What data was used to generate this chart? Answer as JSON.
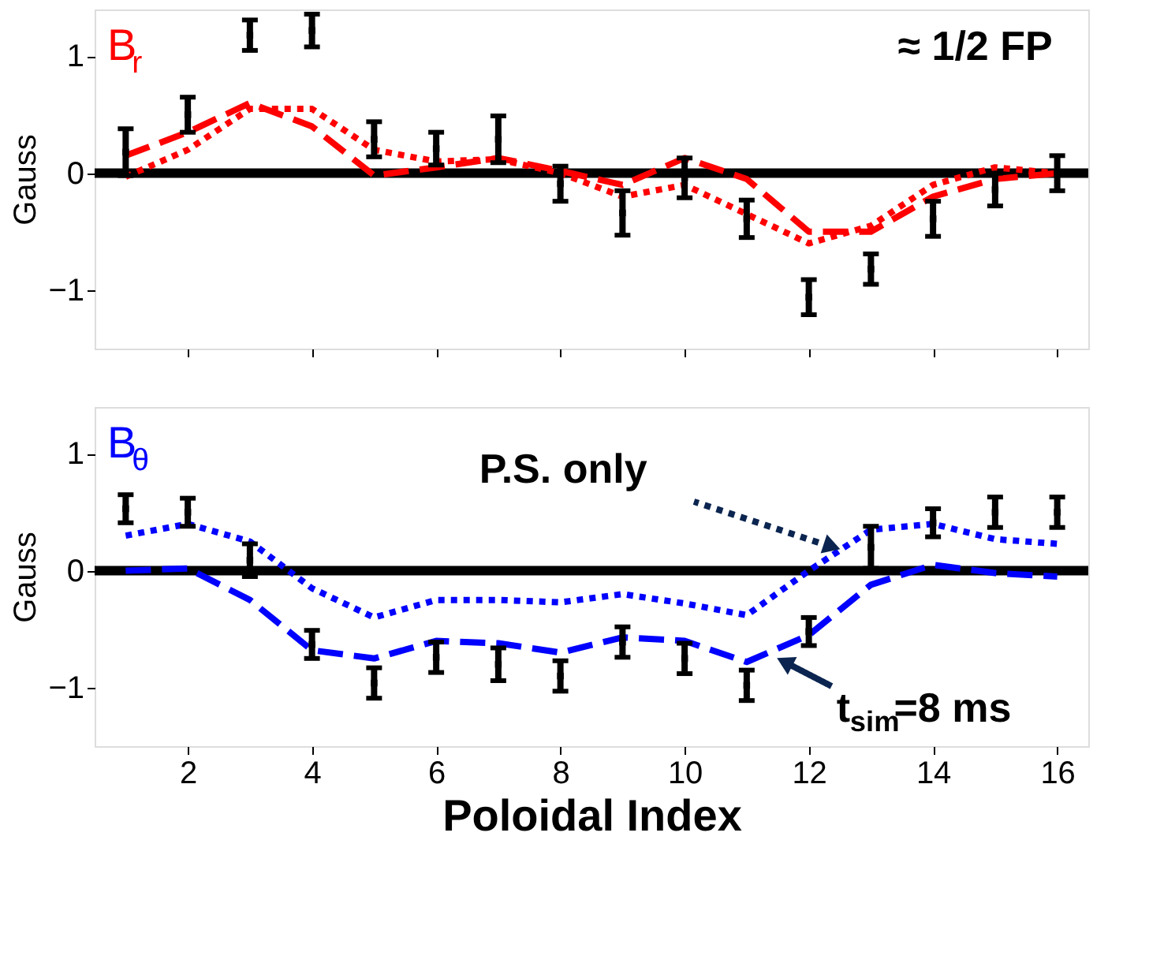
{
  "chart_data": [
    {
      "type": "line",
      "ylabel": "Gauss",
      "xlim": [
        0.5,
        16.5
      ],
      "xticks": [
        2,
        4,
        6,
        8,
        10,
        12,
        14,
        16
      ],
      "ylim": [
        -1.5,
        1.4
      ],
      "yticks": [
        -1,
        0,
        1
      ],
      "tick_labels": "y",
      "marker": "none",
      "annotations": [
        "B$_{r}$",
        "≈ 1/2 FP"
      ],
      "ref_lines": [
        {
          "axis": "y",
          "value": 0,
          "color": "#000000"
        }
      ],
      "series": [
        {
          "color": "#ff0000",
          "line_style": "dashed",
          "x": [
            1,
            2,
            3,
            4,
            5,
            6,
            7,
            8,
            9,
            10,
            11,
            12,
            13,
            14,
            15,
            16
          ],
          "values": [
            0.15,
            0.35,
            0.6,
            0.4,
            -0.02,
            0.05,
            0.13,
            0.02,
            -0.1,
            0.13,
            -0.05,
            -0.5,
            -0.5,
            -0.2,
            -0.05,
            0.0
          ]
        },
        {
          "color": "#ff0000",
          "line_style": "dotted",
          "x": [
            1,
            2,
            3,
            4,
            5,
            6,
            7,
            8,
            9,
            10,
            11,
            12,
            13,
            14,
            15,
            16
          ],
          "values": [
            -0.03,
            0.2,
            0.55,
            0.55,
            0.2,
            0.1,
            0.12,
            0.0,
            -0.2,
            -0.1,
            -0.35,
            -0.6,
            -0.45,
            -0.1,
            0.05,
            0.0
          ]
        },
        {
          "type": "scatter",
          "marker": "square",
          "color": "#000000",
          "x": [
            1,
            2,
            3,
            4,
            5,
            6,
            7,
            8,
            9,
            10,
            11,
            12,
            13,
            14,
            15,
            16
          ],
          "values": [
            0.18,
            0.5,
            1.18,
            1.22,
            0.29,
            0.21,
            0.29,
            -0.09,
            -0.34,
            -0.04,
            -0.39,
            -1.06,
            -0.82,
            -0.39,
            -0.14,
            0.0
          ],
          "errors": [
            0.2,
            0.15,
            0.13,
            0.14,
            0.15,
            0.14,
            0.2,
            0.15,
            0.19,
            0.17,
            0.16,
            0.15,
            0.13,
            0.15,
            0.14,
            0.15
          ]
        }
      ]
    },
    {
      "type": "line",
      "ylabel": "Gauss",
      "xlabel": "Poloidal Index",
      "xlim": [
        0.5,
        16.5
      ],
      "xticks": [
        2,
        4,
        6,
        8,
        10,
        12,
        14,
        16
      ],
      "ylim": [
        -1.5,
        1.4
      ],
      "yticks": [
        -1,
        0,
        1
      ],
      "marker": "none",
      "annotations": [
        "B$_{θ}$",
        {
          "text": "P.S. only",
          "x": 12.5,
          "y": 0.18
        },
        {
          "text": "t$_{sim}$=8 ms",
          "x": 11.5,
          "y": -0.75
        }
      ],
      "ref_lines": [
        {
          "axis": "y",
          "value": 0,
          "color": "#000000"
        }
      ],
      "series": [
        {
          "color": "#0000ff",
          "line_style": "dashed",
          "x": [
            1,
            2,
            3,
            4,
            5,
            6,
            7,
            8,
            9,
            10,
            11,
            12,
            13,
            14,
            15,
            16
          ],
          "values": [
            0.0,
            0.02,
            -0.25,
            -0.68,
            -0.75,
            -0.6,
            -0.62,
            -0.7,
            -0.57,
            -0.6,
            -0.78,
            -0.55,
            -0.12,
            0.05,
            -0.02,
            -0.05
          ]
        },
        {
          "color": "#0000ff",
          "line_style": "dotted",
          "x": [
            1,
            2,
            3,
            4,
            5,
            6,
            7,
            8,
            9,
            10,
            11,
            12,
            13,
            14,
            15,
            16
          ],
          "values": [
            0.3,
            0.4,
            0.25,
            -0.15,
            -0.4,
            -0.25,
            -0.25,
            -0.27,
            -0.2,
            -0.28,
            -0.38,
            0.0,
            0.35,
            0.4,
            0.27,
            0.23
          ]
        },
        {
          "type": "scatter",
          "marker": "square",
          "color": "#000000",
          "x": [
            1,
            2,
            3,
            4,
            5,
            6,
            7,
            8,
            9,
            10,
            11,
            12,
            13,
            14,
            15,
            16
          ],
          "values": [
            0.53,
            0.5,
            0.09,
            -0.63,
            -0.96,
            -0.74,
            -0.8,
            -0.9,
            -0.61,
            -0.75,
            -0.98,
            -0.52,
            0.2,
            0.41,
            0.5,
            0.5
          ],
          "errors": [
            0.12,
            0.12,
            0.14,
            0.12,
            0.13,
            0.13,
            0.14,
            0.13,
            0.13,
            0.13,
            0.13,
            0.12,
            0.18,
            0.12,
            0.13,
            0.13
          ]
        }
      ]
    }
  ]
}
